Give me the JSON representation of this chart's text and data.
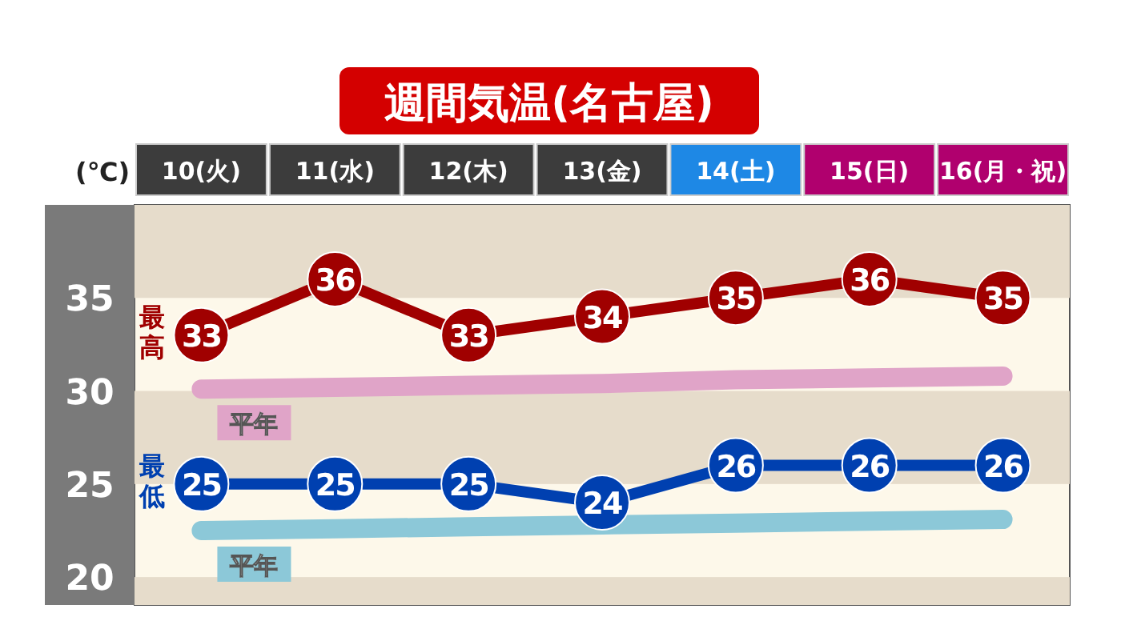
{
  "chart_data": {
    "type": "line",
    "title": "週間気温(名古屋)",
    "ylabel": "(℃)",
    "categories": [
      "10(火)",
      "11(水)",
      "12(木)",
      "13(金)",
      "14(土)",
      "15(日)",
      "16(月・祝)"
    ],
    "ylim": [
      18.5,
      40
    ],
    "yticks": [
      20,
      25,
      30,
      35
    ],
    "grid": false,
    "legend": false,
    "marker": "circle",
    "line_style": "solid",
    "bands": [
      {
        "axis": "y",
        "from": 35,
        "to": 40,
        "color": "#e6dccb"
      },
      {
        "axis": "y",
        "from": 25,
        "to": 30,
        "color": "#e6dccb"
      },
      {
        "axis": "y",
        "from": 18.5,
        "to": 20,
        "color": "#e6dccb"
      }
    ],
    "series": [
      {
        "name": "平年",
        "color": "#e0a4c8",
        "values": [
          30.1,
          30.2,
          30.3,
          30.4,
          30.6,
          30.7,
          30.8
        ],
        "marker": "none"
      },
      {
        "name": "平年",
        "color": "#8cc8d8",
        "values": [
          22.5,
          22.6,
          22.7,
          22.8,
          22.9,
          23.0,
          23.1
        ],
        "marker": "none"
      },
      {
        "name": "最高",
        "color": "#a00000",
        "values": [
          33,
          36,
          33,
          34,
          35,
          36,
          35
        ],
        "value_labels": [
          "33",
          "36",
          "33",
          "34",
          "35",
          "36",
          "35"
        ]
      },
      {
        "name": "最低",
        "color": "#0040b0",
        "values": [
          25,
          25,
          25,
          24,
          26,
          26,
          26
        ],
        "value_labels": [
          "25",
          "25",
          "25",
          "24",
          "26",
          "26",
          "26"
        ]
      }
    ]
  }
}
